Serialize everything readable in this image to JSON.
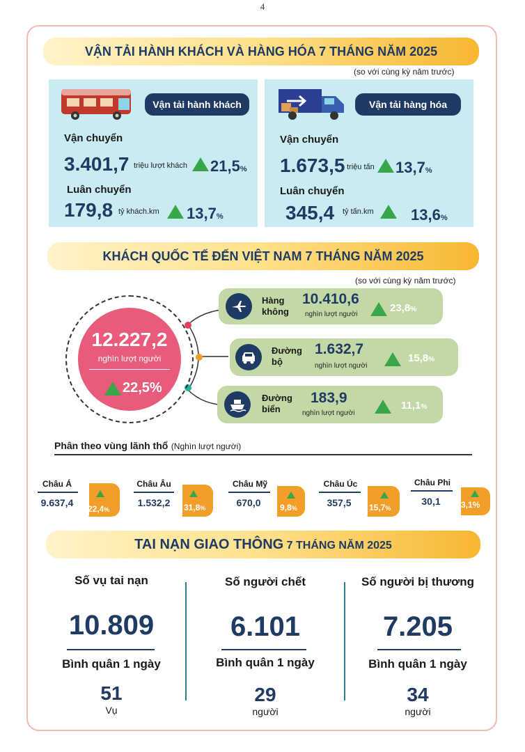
{
  "page_number": "4",
  "section1": {
    "title": "VẬN TẢI HÀNH KHÁCH VÀ HÀNG HÓA 7 THÁNG NĂM 2025",
    "note": "(so với cùng kỳ năm trước)",
    "passenger": {
      "pill": "Vận tải hành khách",
      "transport_label": "Vận chuyển",
      "transport_value": "3.401,7",
      "transport_unit": "triệu lượt khách",
      "transport_pct": "21,5",
      "rotation_label": "Luân chuyển",
      "rotation_value": "179,8",
      "rotation_unit": "tỷ khách.km",
      "rotation_pct": "13,7",
      "pct_sign": "%"
    },
    "freight": {
      "pill": "Vận tải hàng hóa",
      "transport_label": "Vận chuyển",
      "transport_value": "1.673,5",
      "transport_unit": "triệu tấn",
      "transport_pct": "13,7",
      "rotation_label": "Luân chuyển",
      "rotation_value": "345,4",
      "rotation_unit": "tỷ tấn.km",
      "rotation_pct": "13,6",
      "pct_sign": "%"
    }
  },
  "section2": {
    "title": "KHÁCH QUỐC TẾ ĐẾN VIỆT NAM 7 THÁNG NĂM 2025",
    "note": "(so với cùng kỳ năm trước)",
    "total_value": "12.227,2",
    "total_unit": "nghìn lượt người",
    "total_pct": "22,5%",
    "modes": [
      {
        "icon": "airplane-icon",
        "name1": "Hàng",
        "name2": "không",
        "value": "10.410,6",
        "unit": "nghìn lượt người",
        "pct": "23,8",
        "sign": "%"
      },
      {
        "icon": "car-icon",
        "name1": "Đường",
        "name2": "bộ",
        "value": "1.632,7",
        "unit": "nghìn lượt người",
        "pct": "15,8",
        "sign": "%"
      },
      {
        "icon": "ship-icon",
        "name1": "Đường",
        "name2": "biển",
        "value": "183,9",
        "unit": "nghìn lượt người",
        "pct": "11,1",
        "sign": "%"
      }
    ],
    "region_heading": "Phân theo vùng lãnh thổ",
    "region_unit": "(Nghìn lượt người)",
    "regions": [
      {
        "name": "Châu Á",
        "value": "9.637,4",
        "pct": "22,4",
        "sign": "%"
      },
      {
        "name": "Châu Âu",
        "value": "1.532,2",
        "pct": "31,8",
        "sign": "%"
      },
      {
        "name": "Châu Mỹ",
        "value": "670,0",
        "pct": "9,8",
        "sign": "%"
      },
      {
        "name": "Châu Úc",
        "value": "357,5",
        "pct": "15,7",
        "sign": "%"
      },
      {
        "name": "Châu Phi",
        "value": "30,1",
        "pct": "3,1%",
        "sign": ""
      }
    ],
    "colors": {
      "dot1": "#e8415a",
      "dot2": "#f49e2a",
      "dot3": "#1fb59b",
      "circle": "#e85b7a"
    }
  },
  "section3": {
    "title_main": "TAI NẠN GIAO THÔNG",
    "title_rest": "7 THÁNG NĂM 2025",
    "columns": [
      {
        "title": "Số vụ tai nạn",
        "value": "10.809",
        "sub": "Bình quân 1 ngày",
        "per_day": "51",
        "unit": "Vụ"
      },
      {
        "title": "Số người chết",
        "value": "6.101",
        "sub": "Bình quân 1 ngày",
        "per_day": "29",
        "unit": "người"
      },
      {
        "title": "Số người bị thương",
        "value": "7.205",
        "sub": "Bình quân 1 ngày",
        "per_day": "34",
        "unit": "người"
      }
    ]
  }
}
